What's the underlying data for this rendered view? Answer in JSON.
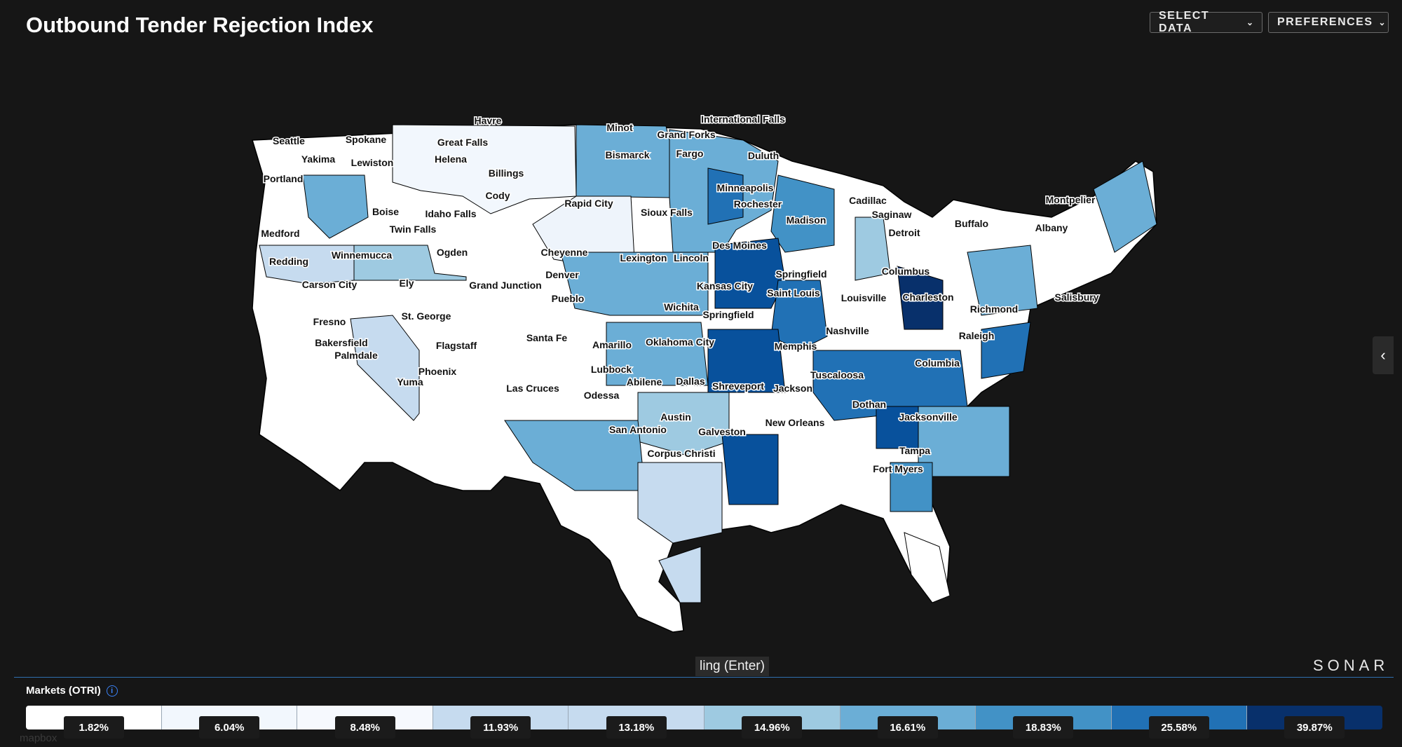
{
  "header": {
    "title": "Outbound Tender Rejection Index",
    "select_data_label": "SELECT DATA",
    "preferences_label": "PREFERENCES"
  },
  "map": {
    "labels": [
      "Havre",
      "International Falls",
      "Minot",
      "Grand Forks",
      "Seattle",
      "Spokane",
      "Great Falls",
      "Bismarck",
      "Fargo",
      "Duluth",
      "Yakima",
      "Lewiston",
      "Helena",
      "Billings",
      "Portland",
      "Minneapolis",
      "Cody",
      "Cadillac",
      "Montpelier",
      "Rapid City",
      "Rochester",
      "Sioux Falls",
      "Saginaw",
      "Boise",
      "Idaho Falls",
      "Madison",
      "Buffalo",
      "Albany",
      "Twin Falls",
      "Medford",
      "Detroit",
      "Des Moines",
      "Ogden",
      "Cheyenne",
      "Winnemucca",
      "Lexington",
      "Lincoln",
      "Redding",
      "Columbus",
      "Springfield",
      "Denver",
      "Ely",
      "Carson City",
      "Kansas City",
      "Grand Junction",
      "Saint Louis",
      "Salisbury",
      "Pueblo",
      "Louisville",
      "Charleston",
      "Wichita",
      "Richmond",
      "St. George",
      "Springfield",
      "Fresno",
      "Nashville",
      "Santa Fe",
      "Raleigh",
      "Oklahoma City",
      "Bakersfield",
      "Flagstaff",
      "Amarillo",
      "Memphis",
      "Palmdale",
      "Columbia",
      "Phoenix",
      "Lubbock",
      "Tuscaloosa",
      "Yuma",
      "Abilene",
      "Dallas",
      "Las Cruces",
      "Shreveport",
      "Jackson",
      "Odessa",
      "Dothan",
      "Austin",
      "Jacksonville",
      "New Orleans",
      "San Antonio",
      "Galveston",
      "Corpus Christi",
      "Tampa",
      "Fort Myers"
    ]
  },
  "tooltip": {
    "text": "ling (Enter)"
  },
  "brand": {
    "logo_text": "SONAR",
    "attribution": "mapbox"
  },
  "legend": {
    "title": "Markets (OTRI)",
    "colors": [
      "#ffffff",
      "#f2f7fd",
      "#f6f9fe",
      "#c6dbef",
      "#c6dbef",
      "#9ecae1",
      "#6baed6",
      "#4292c6",
      "#2171b5",
      "#08306b"
    ],
    "values": [
      "1.82%",
      "6.04%",
      "8.48%",
      "11.93%",
      "13.18%",
      "14.96%",
      "16.61%",
      "18.83%",
      "25.58%",
      "39.87%"
    ]
  }
}
